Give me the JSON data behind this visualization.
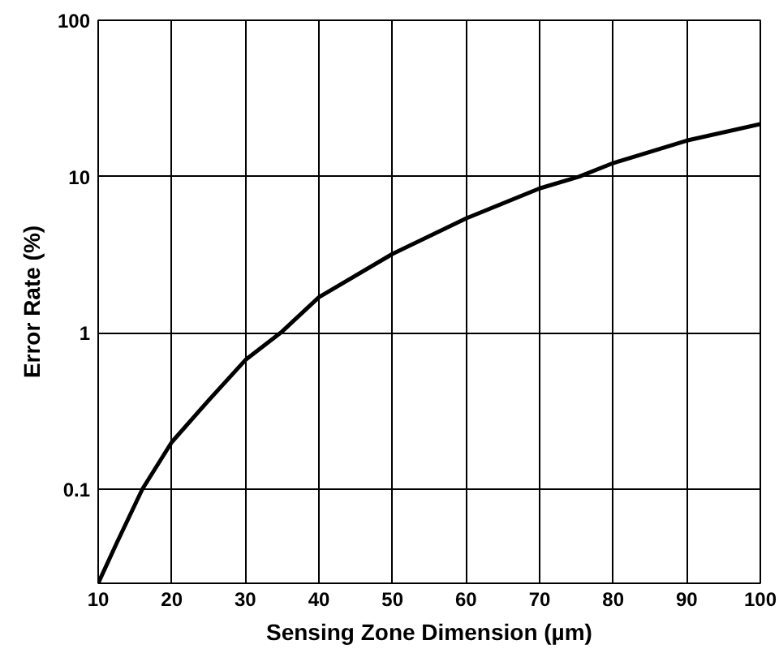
{
  "chart_data": {
    "type": "line",
    "xlabel": "Sensing Zone Dimension (µm)",
    "ylabel": "Error Rate (%)",
    "x": [
      10,
      12.5,
      16,
      20,
      25,
      30,
      35,
      40,
      50,
      60,
      70,
      75.4,
      80,
      90,
      100
    ],
    "series": [
      {
        "color": "#000000",
        "values": [
          0.025,
          0.045,
          0.1,
          0.2,
          0.37,
          0.67,
          1.02,
          1.69,
          3.2,
          5.4,
          8.4,
          10,
          12.2,
          17,
          21.7
        ]
      }
    ],
    "xlim": [
      10,
      100
    ],
    "xticks": [
      10,
      20,
      30,
      40,
      50,
      60,
      70,
      80,
      90,
      100
    ],
    "ylim": [
      0.025,
      100
    ],
    "yticks": [
      0.1,
      1,
      10,
      100
    ],
    "log": "y",
    "grid": true,
    "marker": "none",
    "line_style": "solid"
  }
}
